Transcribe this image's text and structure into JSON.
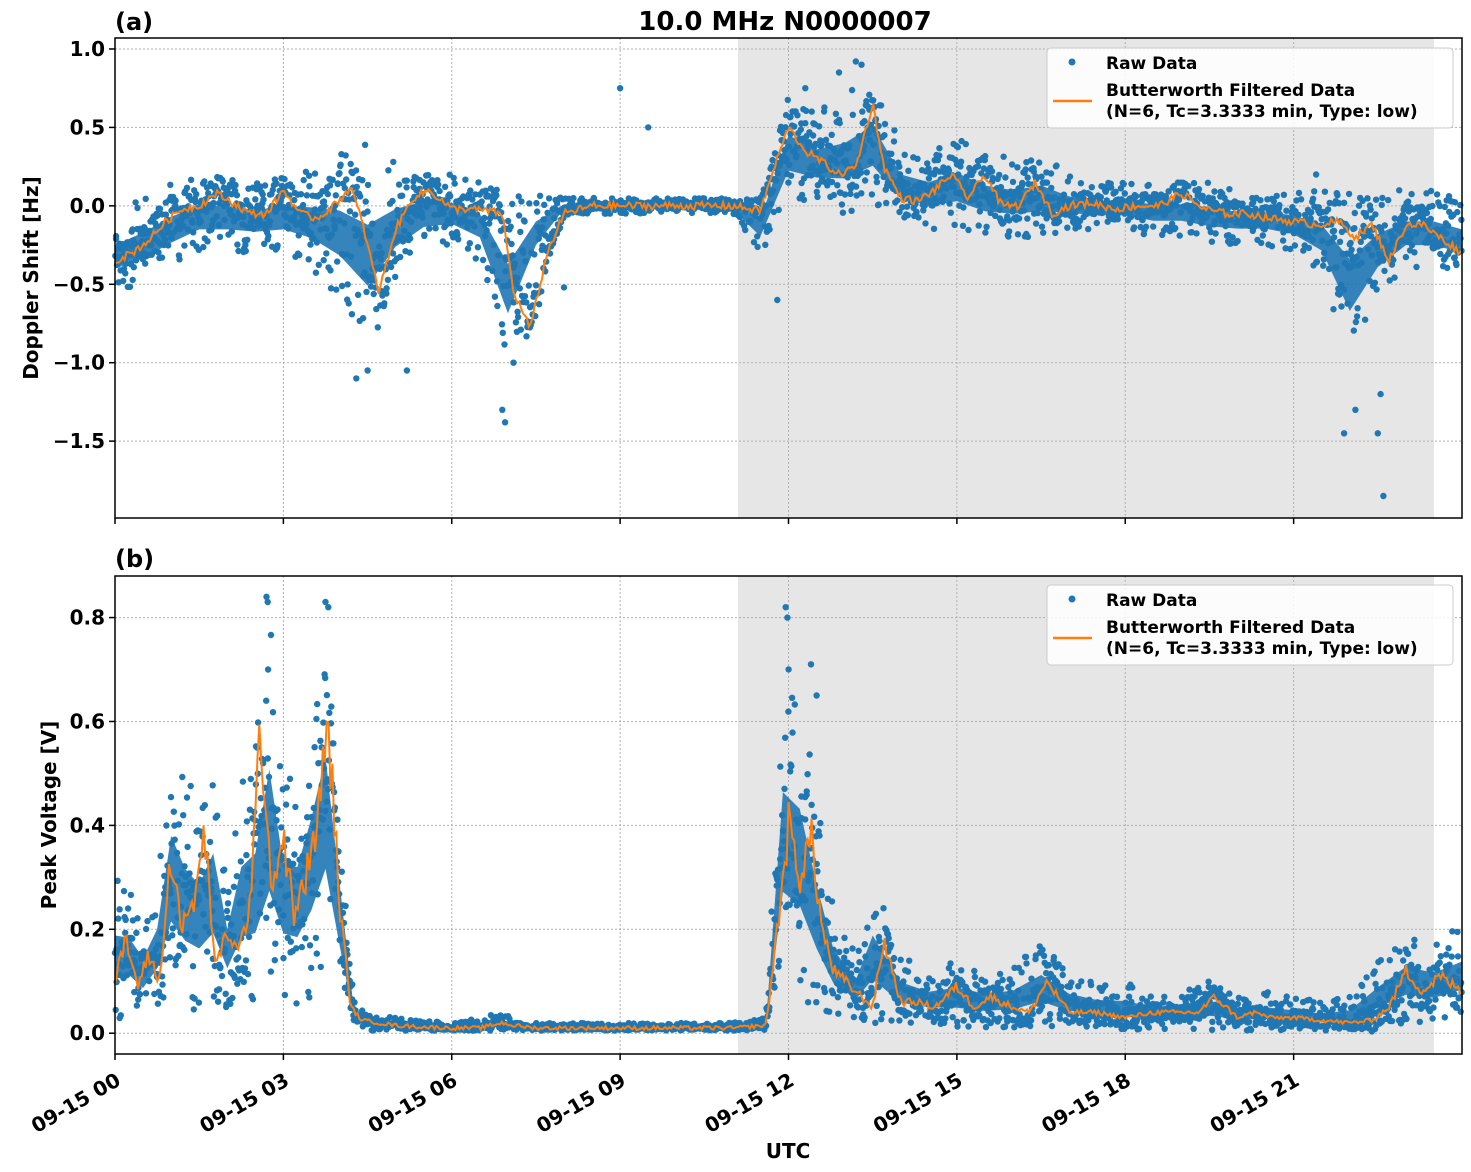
{
  "chart_data": [
    {
      "type": "scatter",
      "panel_label": "(a)",
      "title": "10.0 MHz N0000007",
      "xlabel": "",
      "ylabel": "Doppler Shift [Hz]",
      "xlim": [
        0,
        24
      ],
      "ylim": [
        -1.99,
        1.07
      ],
      "yticks": [
        1.0,
        0.5,
        0.0,
        -0.5,
        -1.0,
        -1.5
      ],
      "ytick_labels": [
        "1.0",
        "0.5",
        "0.0",
        "−0.5",
        "−1.0",
        "−1.5"
      ],
      "grid": true,
      "shaded_x_range": [
        11.1,
        23.5
      ],
      "legend": {
        "placement": "top-right",
        "entries": [
          "Raw Data",
          "Butterworth Filtered Data",
          "(N=6, Tc=3.3333 min, Type: low)"
        ]
      },
      "series": [
        {
          "name": "Butterworth Filtered Data (N=6, Tc=3.3333 min, Type: low)",
          "color": "#ff7f0e",
          "x": [
            0,
            0.3,
            0.6,
            0.9,
            1.2,
            1.5,
            1.8,
            2.1,
            2.4,
            2.7,
            3.0,
            3.3,
            3.6,
            3.9,
            4.2,
            4.4,
            4.7,
            5.0,
            5.3,
            5.6,
            6.0,
            6.3,
            6.6,
            6.9,
            7.1,
            7.4,
            7.7,
            8.0,
            8.5,
            9.0,
            9.5,
            10.0,
            10.5,
            11.0,
            11.5,
            11.8,
            12.0,
            12.3,
            12.6,
            12.9,
            13.2,
            13.5,
            13.7,
            14.0,
            14.3,
            14.6,
            14.9,
            15.2,
            15.5,
            15.8,
            16.1,
            16.4,
            16.7,
            17.0,
            17.4,
            17.8,
            18.2,
            18.6,
            19.0,
            19.4,
            19.8,
            20.2,
            20.6,
            21.0,
            21.4,
            21.8,
            22.1,
            22.4,
            22.7,
            23.0,
            23.3,
            23.6,
            24.0
          ],
          "y": [
            -0.35,
            -0.3,
            -0.22,
            -0.1,
            -0.02,
            0.0,
            0.08,
            0.02,
            -0.05,
            -0.05,
            0.1,
            -0.05,
            -0.08,
            0.0,
            0.12,
            -0.1,
            -0.55,
            -0.15,
            0.05,
            0.1,
            -0.02,
            -0.02,
            -0.03,
            -0.05,
            -0.55,
            -0.78,
            -0.3,
            -0.05,
            0.0,
            0.0,
            0.0,
            0.0,
            0.0,
            0.0,
            -0.03,
            0.3,
            0.5,
            0.35,
            0.28,
            0.2,
            0.25,
            0.65,
            0.25,
            0.05,
            0.03,
            0.1,
            0.2,
            0.05,
            0.2,
            0.0,
            0.0,
            0.15,
            -0.05,
            0.0,
            0.02,
            -0.02,
            0.0,
            0.0,
            0.08,
            -0.02,
            -0.05,
            -0.05,
            -0.08,
            -0.1,
            -0.12,
            -0.1,
            -0.2,
            -0.12,
            -0.35,
            -0.12,
            -0.12,
            -0.2,
            -0.3
          ]
        },
        {
          "name": "Raw Data",
          "color": "#1f77b4",
          "x": [
            0,
            0.5,
            1.0,
            1.5,
            2.0,
            2.5,
            3.0,
            3.5,
            4.0,
            4.5,
            5.0,
            5.5,
            6.0,
            6.5,
            7.0,
            7.5,
            8.0,
            8.5,
            9.0,
            9.5,
            10.0,
            10.5,
            11.0,
            11.5,
            12.0,
            12.5,
            13.0,
            13.5,
            14.0,
            14.5,
            15.0,
            15.5,
            16.0,
            16.5,
            17.0,
            17.5,
            18.0,
            18.5,
            19.0,
            19.5,
            20.0,
            20.5,
            21.0,
            21.5,
            22.0,
            22.5,
            23.0,
            23.5,
            24.0
          ],
          "y_upper": [
            -0.05,
            0.05,
            0.15,
            0.2,
            0.2,
            0.15,
            0.2,
            0.25,
            0.35,
            0.4,
            0.3,
            0.25,
            0.2,
            0.15,
            0.05,
            0.1,
            0.05,
            0.05,
            0.05,
            0.05,
            0.05,
            0.05,
            0.05,
            0.05,
            0.75,
            0.6,
            0.7,
            0.85,
            0.4,
            0.35,
            0.45,
            0.35,
            0.3,
            0.35,
            0.2,
            0.15,
            0.15,
            0.15,
            0.15,
            0.15,
            0.1,
            0.1,
            0.1,
            0.1,
            0.1,
            0.1,
            0.1,
            0.1,
            0.05
          ],
          "y_lower": [
            -0.55,
            -0.5,
            -0.4,
            -0.3,
            -0.3,
            -0.3,
            -0.3,
            -0.4,
            -0.6,
            -0.9,
            -0.5,
            -0.3,
            -0.25,
            -0.35,
            -1.0,
            -0.4,
            -0.05,
            -0.05,
            -0.05,
            -0.05,
            -0.05,
            -0.05,
            -0.05,
            -0.3,
            0.0,
            0.0,
            -0.05,
            0.0,
            -0.1,
            -0.15,
            -0.15,
            -0.2,
            -0.2,
            -0.2,
            -0.15,
            -0.15,
            -0.15,
            -0.2,
            -0.2,
            -0.25,
            -0.25,
            -0.25,
            -0.3,
            -0.45,
            -1.0,
            -0.6,
            -0.4,
            -0.4,
            -0.45
          ],
          "outliers_x": [
            4.3,
            4.5,
            5.2,
            6.9,
            6.95,
            7.1,
            8.0,
            9.0,
            9.5,
            11.8,
            11.7,
            12.3,
            12.9,
            13.2,
            13.3,
            21.4,
            21.9,
            22.1,
            22.5,
            22.6,
            22.55
          ],
          "outliers_y": [
            -1.1,
            -1.05,
            -1.05,
            -1.3,
            -1.38,
            -1.0,
            -0.52,
            0.75,
            0.5,
            -0.6,
            0.25,
            0.75,
            0.85,
            0.92,
            0.9,
            0.2,
            -1.45,
            -1.3,
            -1.45,
            -1.85,
            -1.2
          ]
        }
      ]
    },
    {
      "type": "scatter",
      "panel_label": "(b)",
      "title": "",
      "xlabel": "UTC",
      "ylabel": "Peak Voltage [V]",
      "xlim": [
        0,
        24
      ],
      "ylim": [
        -0.04,
        0.88
      ],
      "yticks": [
        0.0,
        0.2,
        0.4,
        0.6,
        0.8
      ],
      "ytick_labels": [
        "0.0",
        "0.2",
        "0.4",
        "0.6",
        "0.8"
      ],
      "xticks": [
        0,
        3,
        6,
        9,
        12,
        15,
        18,
        21
      ],
      "xtick_labels": [
        "09-15 00",
        "09-15 03",
        "09-15 06",
        "09-15 09",
        "09-15 12",
        "09-15 15",
        "09-15 18",
        "09-15 21"
      ],
      "grid": true,
      "shaded_x_range": [
        11.1,
        23.5
      ],
      "legend": {
        "placement": "top-right",
        "entries": [
          "Raw Data",
          "Butterworth Filtered Data",
          "(N=6, Tc=3.3333 min, Type: low)"
        ]
      },
      "series": [
        {
          "name": "Butterworth Filtered Data (N=6, Tc=3.3333 min, Type: low)",
          "color": "#ff7f0e",
          "x": [
            0,
            0.2,
            0.4,
            0.6,
            0.8,
            1.0,
            1.2,
            1.4,
            1.6,
            1.8,
            2.0,
            2.2,
            2.4,
            2.6,
            2.8,
            3.0,
            3.2,
            3.4,
            3.6,
            3.8,
            4.0,
            4.2,
            4.4,
            4.7,
            5.0,
            5.5,
            6.0,
            6.5,
            6.9,
            7.1,
            7.5,
            8.0,
            8.5,
            9.0,
            10.0,
            11.0,
            11.6,
            11.8,
            12.0,
            12.2,
            12.4,
            12.6,
            12.8,
            13.0,
            13.2,
            13.5,
            13.7,
            14.0,
            14.3,
            14.6,
            15.0,
            15.3,
            15.6,
            16.0,
            16.3,
            16.6,
            17.0,
            17.5,
            18.0,
            18.5,
            19.0,
            19.3,
            19.6,
            20.0,
            20.3,
            20.6,
            21.0,
            21.5,
            22.0,
            22.4,
            22.7,
            23.0,
            23.3,
            23.6,
            24.0
          ],
          "y": [
            0.1,
            0.18,
            0.09,
            0.15,
            0.1,
            0.35,
            0.2,
            0.25,
            0.38,
            0.12,
            0.2,
            0.15,
            0.25,
            0.58,
            0.28,
            0.38,
            0.22,
            0.3,
            0.4,
            0.6,
            0.25,
            0.05,
            0.025,
            0.02,
            0.015,
            0.012,
            0.01,
            0.01,
            0.02,
            0.015,
            0.01,
            0.01,
            0.01,
            0.01,
            0.01,
            0.01,
            0.015,
            0.2,
            0.4,
            0.3,
            0.38,
            0.2,
            0.12,
            0.1,
            0.08,
            0.05,
            0.18,
            0.06,
            0.06,
            0.05,
            0.09,
            0.05,
            0.07,
            0.05,
            0.04,
            0.1,
            0.04,
            0.04,
            0.03,
            0.04,
            0.04,
            0.04,
            0.07,
            0.03,
            0.04,
            0.03,
            0.03,
            0.025,
            0.02,
            0.025,
            0.05,
            0.12,
            0.08,
            0.11,
            0.08
          ]
        },
        {
          "name": "Raw Data",
          "color": "#1f77b4",
          "x": [
            0,
            0.25,
            0.5,
            0.75,
            1.0,
            1.25,
            1.5,
            1.75,
            2.0,
            2.25,
            2.5,
            2.75,
            3.0,
            3.25,
            3.5,
            3.75,
            4.0,
            4.25,
            4.5,
            5.0,
            6.0,
            6.9,
            7.2,
            8.0,
            9.0,
            10.0,
            11.0,
            11.6,
            11.9,
            12.2,
            12.5,
            12.8,
            13.2,
            13.5,
            14.0,
            14.5,
            15.0,
            15.5,
            16.0,
            16.5,
            17.0,
            17.5,
            18.0,
            18.5,
            19.0,
            19.5,
            20.0,
            20.5,
            21.0,
            21.5,
            22.0,
            22.5,
            23.0,
            23.5,
            24.0
          ],
          "y_upper": [
            0.3,
            0.28,
            0.22,
            0.3,
            0.6,
            0.5,
            0.45,
            0.55,
            0.3,
            0.5,
            0.55,
            0.82,
            0.5,
            0.5,
            0.65,
            0.82,
            0.45,
            0.08,
            0.04,
            0.03,
            0.02,
            0.04,
            0.02,
            0.02,
            0.02,
            0.02,
            0.02,
            0.03,
            0.72,
            0.68,
            0.45,
            0.25,
            0.15,
            0.3,
            0.15,
            0.12,
            0.14,
            0.12,
            0.13,
            0.18,
            0.12,
            0.1,
            0.1,
            0.08,
            0.09,
            0.1,
            0.08,
            0.08,
            0.07,
            0.06,
            0.07,
            0.14,
            0.2,
            0.18,
            0.21
          ],
          "y_lower": [
            0.02,
            0.04,
            0.03,
            0.05,
            0.05,
            0.04,
            0.04,
            0.04,
            0.05,
            0.05,
            0.04,
            0.04,
            0.06,
            0.05,
            0.06,
            0.1,
            0.05,
            0.01,
            0.005,
            0.005,
            0.005,
            0.005,
            0.005,
            0.005,
            0.005,
            0.005,
            0.005,
            0.005,
            0.08,
            0.06,
            0.04,
            0.03,
            0.03,
            0.02,
            0.02,
            0.02,
            0.01,
            0.01,
            0.01,
            0.01,
            0.01,
            0.01,
            0.005,
            0.005,
            0.005,
            0.005,
            0.005,
            0.005,
            0.005,
            0.005,
            0.005,
            0.01,
            0.02,
            0.02,
            0.03
          ],
          "outliers_x": [
            2.7,
            2.72,
            3.75,
            3.8,
            11.95,
            11.98,
            12.4,
            12.5
          ],
          "outliers_y": [
            0.84,
            0.83,
            0.83,
            0.82,
            0.82,
            0.8,
            0.71,
            0.65
          ]
        }
      ]
    }
  ]
}
